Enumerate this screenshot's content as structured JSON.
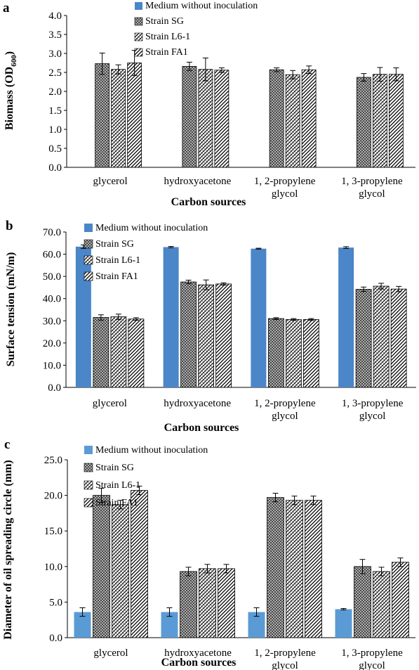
{
  "chart_data": [
    {
      "panel_label": "a",
      "type": "bar",
      "categories": [
        "glycerol",
        "hydroxyacetone",
        "1, 2-propylene glycol",
        "1, 3-propylene glycol"
      ],
      "series": [
        {
          "name": "Medium without inoculation",
          "values": [
            0,
            0,
            0,
            0
          ],
          "errors": [
            0,
            0,
            0,
            0
          ],
          "color": "#4a86c8"
        },
        {
          "name": "Strain SG",
          "values": [
            2.73,
            2.66,
            2.57,
            2.37
          ],
          "errors": [
            0.28,
            0.11,
            0.05,
            0.1
          ],
          "color": "#000000"
        },
        {
          "name": "Strain L6-1",
          "values": [
            2.58,
            2.58,
            2.44,
            2.45
          ],
          "errors": [
            0.12,
            0.3,
            0.11,
            0.18
          ],
          "color": "#000000"
        },
        {
          "name": "Strain FA1",
          "values": [
            2.75,
            2.56,
            2.57,
            2.45
          ],
          "errors": [
            0.33,
            0.06,
            0.1,
            0.17
          ],
          "color": "#000000"
        }
      ],
      "xlabel": "Carbon sources",
      "ylabel": "Biomass (OD600)",
      "ylabel_main": "Biomass (OD",
      "ylabel_sub": "600",
      "ylabel_end": ")",
      "ylim": [
        0,
        4.0
      ],
      "yticks": [
        "0.0",
        "0.5",
        "1.0",
        "1.5",
        "2.0",
        "2.5",
        "3.0",
        "3.5",
        "4.0"
      ],
      "grid": false,
      "legend_position": "top-center"
    },
    {
      "panel_label": "b",
      "type": "bar",
      "categories": [
        "glycerol",
        "hydroxyacetone",
        "1, 2-propylene glycol",
        "1, 3-propylene glycol"
      ],
      "series": [
        {
          "name": "Medium without inoculation",
          "values": [
            63.4,
            63.2,
            62.5,
            63.0
          ],
          "errors": [
            0.8,
            0.3,
            0.2,
            0.4
          ],
          "color": "#4a86c8"
        },
        {
          "name": "Strain SG",
          "values": [
            31.5,
            47.5,
            31.0,
            44.2
          ],
          "errors": [
            1.2,
            0.8,
            0.4,
            1.0
          ],
          "color": "#000000"
        },
        {
          "name": "Strain L6-1",
          "values": [
            31.8,
            46.2,
            30.6,
            45.6
          ],
          "errors": [
            1.2,
            2.2,
            0.4,
            1.3
          ],
          "color": "#000000"
        },
        {
          "name": "Strain FA1",
          "values": [
            30.8,
            46.6,
            30.6,
            44.3
          ],
          "errors": [
            0.6,
            0.5,
            0.4,
            1.2
          ],
          "color": "#000000"
        }
      ],
      "xlabel": "Carbon sources",
      "ylabel": "Surface tension (mN/m)",
      "ylim": [
        0,
        70
      ],
      "yticks": [
        "0.0",
        "10.0",
        "20.0",
        "30.0",
        "40.0",
        "50.0",
        "60.0",
        "70.0"
      ],
      "grid": false,
      "legend_position": "top-center"
    },
    {
      "panel_label": "c",
      "type": "bar",
      "categories": [
        "glycerol",
        "hydroxyacetone",
        "1, 2-propylene glycol",
        "1, 3-propylene glycol"
      ],
      "series": [
        {
          "name": "Medium without inoculation",
          "values": [
            3.6,
            3.6,
            3.6,
            4.0
          ],
          "errors": [
            0.6,
            0.6,
            0.6,
            0.1
          ],
          "color": "#5b9bd5"
        },
        {
          "name": "Strain SG",
          "values": [
            20.0,
            9.3,
            19.7,
            10.0
          ],
          "errors": [
            1.0,
            0.6,
            0.6,
            1.0
          ],
          "color": "#000000"
        },
        {
          "name": "Strain L6-1",
          "values": [
            18.7,
            9.7,
            19.3,
            9.3
          ],
          "errors": [
            0.6,
            0.6,
            0.6,
            0.6
          ],
          "color": "#000000"
        },
        {
          "name": "Strain FA1",
          "values": [
            20.7,
            9.7,
            19.3,
            10.6
          ],
          "errors": [
            0.6,
            0.6,
            0.6,
            0.6
          ],
          "color": "#000000"
        }
      ],
      "xlabel": "Carbon sources",
      "ylabel": "Diameter of oil spreading circle (mm)",
      "ylim": [
        0,
        25
      ],
      "yticks": [
        "0.0",
        "5.0",
        "10.0",
        "15.0",
        "20.0",
        "25.0"
      ],
      "grid": false,
      "legend_position": "top-center"
    }
  ]
}
